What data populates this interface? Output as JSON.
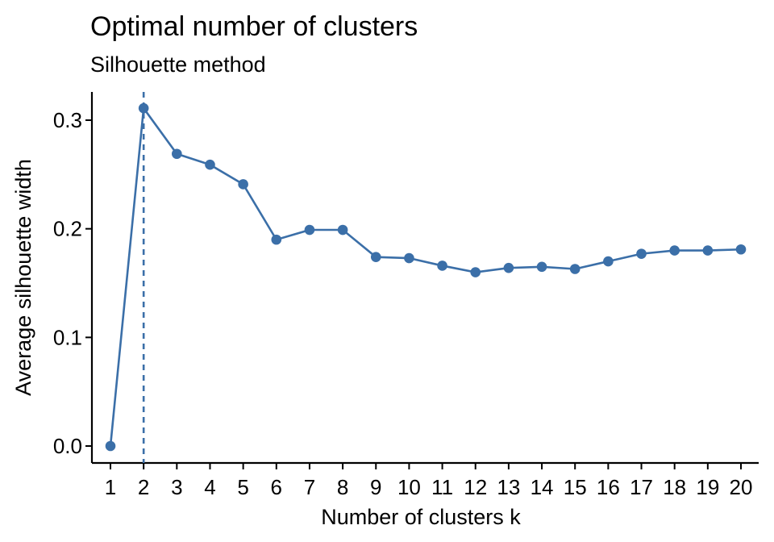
{
  "chart_data": {
    "type": "line",
    "title": "Optimal number of clusters",
    "subtitle": "Silhouette method",
    "xlabel": "Number of clusters k",
    "ylabel": "Average silhouette width",
    "x": [
      1,
      2,
      3,
      4,
      5,
      6,
      7,
      8,
      9,
      10,
      11,
      12,
      13,
      14,
      15,
      16,
      17,
      18,
      19,
      20
    ],
    "y": [
      0.0,
      0.311,
      0.269,
      0.259,
      0.241,
      0.19,
      0.199,
      0.199,
      0.174,
      0.173,
      0.166,
      0.16,
      0.164,
      0.165,
      0.163,
      0.17,
      0.177,
      0.18,
      0.18,
      0.181
    ],
    "xlim": [
      1,
      20
    ],
    "ylim": [
      0.0,
      0.3
    ],
    "xticks": [
      "1",
      "2",
      "3",
      "4",
      "5",
      "6",
      "7",
      "8",
      "9",
      "10",
      "11",
      "12",
      "13",
      "14",
      "15",
      "16",
      "17",
      "18",
      "19",
      "20"
    ],
    "yticks": [
      0.0,
      0.1,
      0.2,
      0.3
    ],
    "ytick_labels": [
      "0.0",
      "0.1",
      "0.2",
      "0.3"
    ],
    "optimal_k": 2,
    "series_color": "#3B6FA8",
    "grid": false,
    "legend": "none"
  }
}
